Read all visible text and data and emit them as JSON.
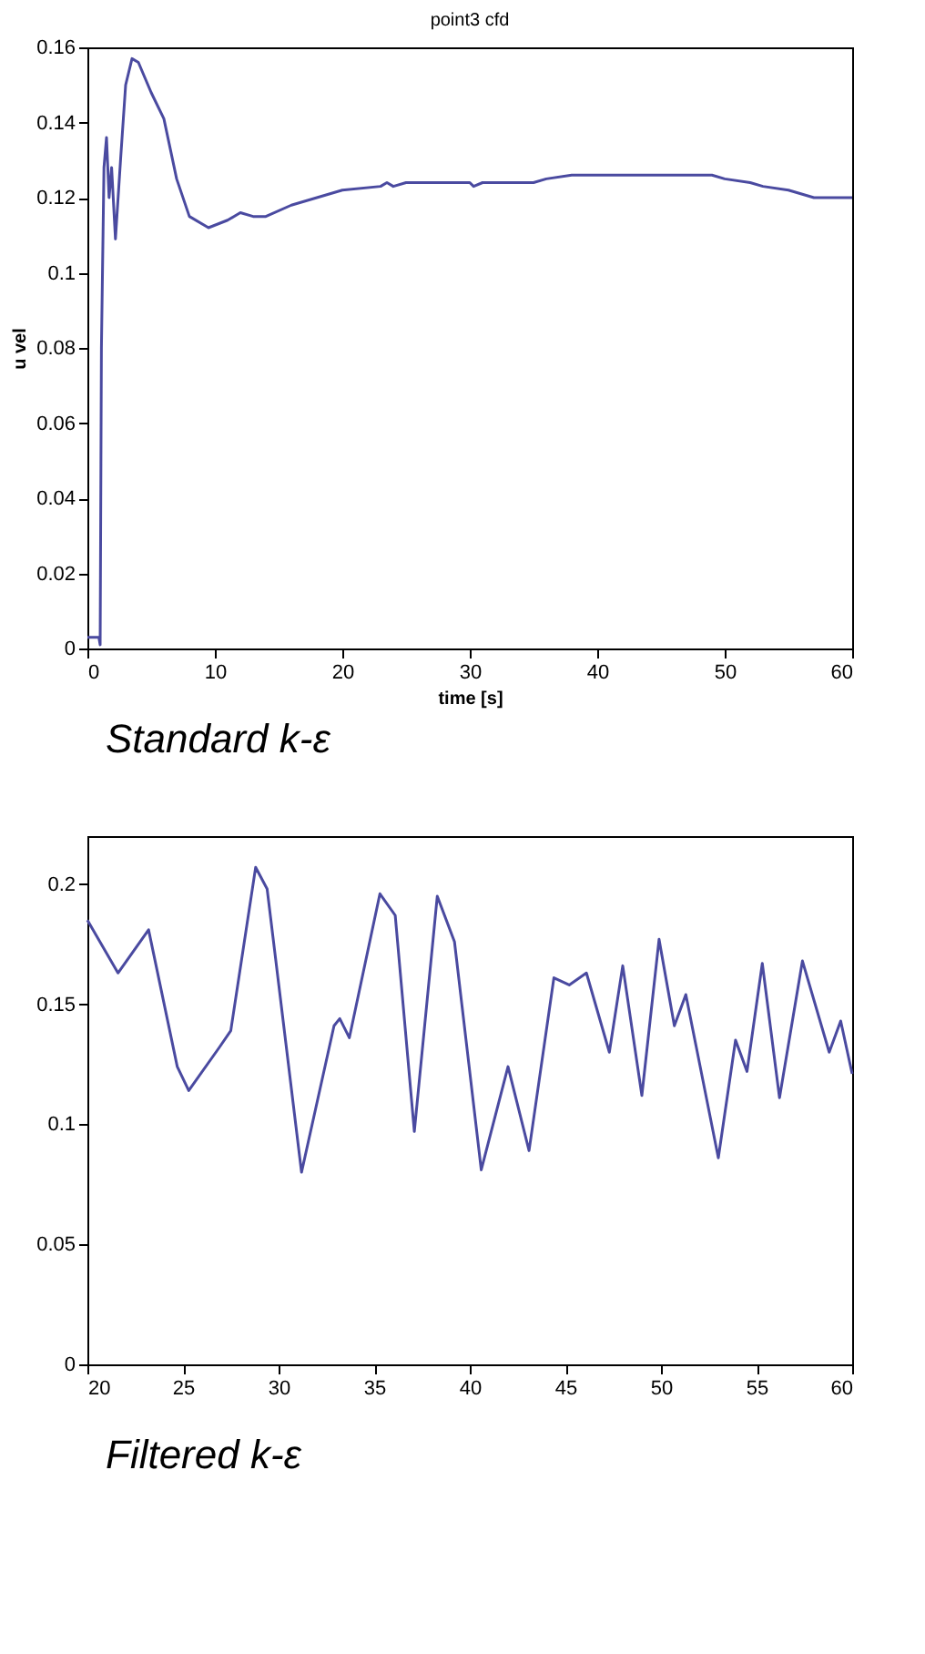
{
  "chart_data": [
    {
      "type": "line",
      "title": "point3 cfd",
      "xlabel": "time [s]",
      "ylabel": "u vel",
      "annotations": [
        "Standard k-ε"
      ],
      "grid": false,
      "xlim": [
        0,
        60
      ],
      "ylim": [
        0,
        0.16
      ],
      "xticks": [
        0,
        10,
        20,
        30,
        40,
        50,
        60
      ],
      "yticks": [
        0,
        0.02,
        0.04,
        0.06,
        0.08,
        0.1,
        0.12,
        0.14,
        0.16
      ],
      "x": [
        0,
        0.9,
        1.0,
        1.1,
        1.3,
        1.5,
        1.7,
        1.9,
        2.2,
        2.6,
        3.0,
        3.5,
        4,
        5,
        6,
        7,
        8,
        9.5,
        11,
        12,
        13,
        14,
        16,
        18,
        20,
        23,
        23.5,
        24,
        25,
        30,
        30.3,
        31,
        35,
        36,
        38,
        45,
        49,
        50,
        52,
        53,
        55,
        57,
        60
      ],
      "series": [
        {
          "color": "#4a4aa0",
          "values": [
            0.003,
            0.003,
            0.001,
            0.08,
            0.128,
            0.136,
            0.12,
            0.128,
            0.109,
            0.13,
            0.15,
            0.157,
            0.156,
            0.148,
            0.141,
            0.125,
            0.115,
            0.112,
            0.114,
            0.116,
            0.115,
            0.115,
            0.118,
            0.12,
            0.122,
            0.123,
            0.124,
            0.123,
            0.124,
            0.124,
            0.123,
            0.124,
            0.124,
            0.125,
            0.126,
            0.126,
            0.126,
            0.125,
            0.124,
            0.123,
            0.122,
            0.12,
            0.12
          ]
        }
      ]
    },
    {
      "type": "line",
      "annotations": [
        "Filtered k-ε"
      ],
      "grid": false,
      "xlim": [
        20,
        60
      ],
      "ylim": [
        0,
        0.22
      ],
      "xticks": [
        20,
        25,
        30,
        35,
        40,
        45,
        50,
        55,
        60
      ],
      "yticks": [
        0,
        0.05,
        0.1,
        0.15,
        0.2
      ],
      "x": [
        20,
        21.6,
        23.2,
        24.7,
        25.3,
        26.9,
        27.5,
        28.8,
        29.4,
        30.3,
        31.2,
        32.9,
        33.2,
        33.7,
        35.3,
        36.1,
        37.1,
        38.3,
        39.2,
        40.6,
        42.0,
        43.1,
        44.4,
        45.2,
        46.1,
        47.3,
        48.0,
        49.0,
        49.9,
        50.7,
        51.3,
        53.0,
        53.9,
        54.5,
        55.3,
        56.2,
        57.4,
        58.8,
        59.4,
        60
      ],
      "series": [
        {
          "color": "#4a4aa0",
          "values": [
            0.185,
            0.163,
            0.181,
            0.124,
            0.114,
            0.132,
            0.139,
            0.207,
            0.198,
            0.139,
            0.08,
            0.141,
            0.144,
            0.136,
            0.196,
            0.187,
            0.097,
            0.195,
            0.176,
            0.081,
            0.124,
            0.089,
            0.161,
            0.158,
            0.163,
            0.13,
            0.166,
            0.112,
            0.177,
            0.141,
            0.154,
            0.086,
            0.135,
            0.122,
            0.167,
            0.111,
            0.168,
            0.13,
            0.143,
            0.121
          ]
        }
      ]
    }
  ]
}
